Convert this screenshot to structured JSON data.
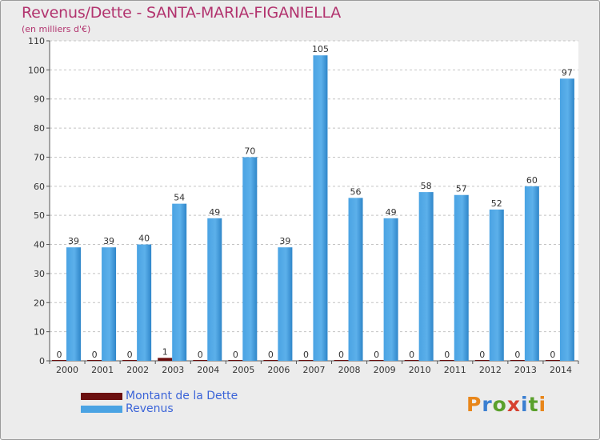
{
  "chart_data": {
    "type": "bar",
    "title": "Revenus/Dette - SANTA-MARIA-FIGANIELLA",
    "subtitle": "(en milliers d'€)",
    "categories": [
      "2000",
      "2001",
      "2002",
      "2003",
      "2004",
      "2005",
      "2006",
      "2007",
      "2008",
      "2009",
      "2010",
      "2011",
      "2012",
      "2013",
      "2014"
    ],
    "series": [
      {
        "name": "Montant de la Dette",
        "color": "#6b0f0f",
        "values": [
          0,
          0,
          0,
          1,
          0,
          0,
          0,
          0,
          0,
          0,
          0,
          0,
          0,
          0,
          0
        ]
      },
      {
        "name": "Revenus",
        "color": "#4aa3e3",
        "values": [
          39,
          39,
          40,
          54,
          49,
          70,
          39,
          105,
          56,
          49,
          58,
          57,
          52,
          60,
          97
        ]
      }
    ],
    "ylim": [
      0,
      110
    ],
    "yticks": [
      0,
      10,
      20,
      30,
      40,
      50,
      60,
      70,
      80,
      90,
      100,
      110
    ],
    "grid": "horizontal",
    "legend": "bottom-left"
  },
  "logo": {
    "text": "Proxiti",
    "letter_colors": [
      "#e8861a",
      "#3b7fd1",
      "#5aa02c",
      "#d6402f",
      "#3b7fd1",
      "#5aa02c",
      "#e8861a"
    ]
  }
}
